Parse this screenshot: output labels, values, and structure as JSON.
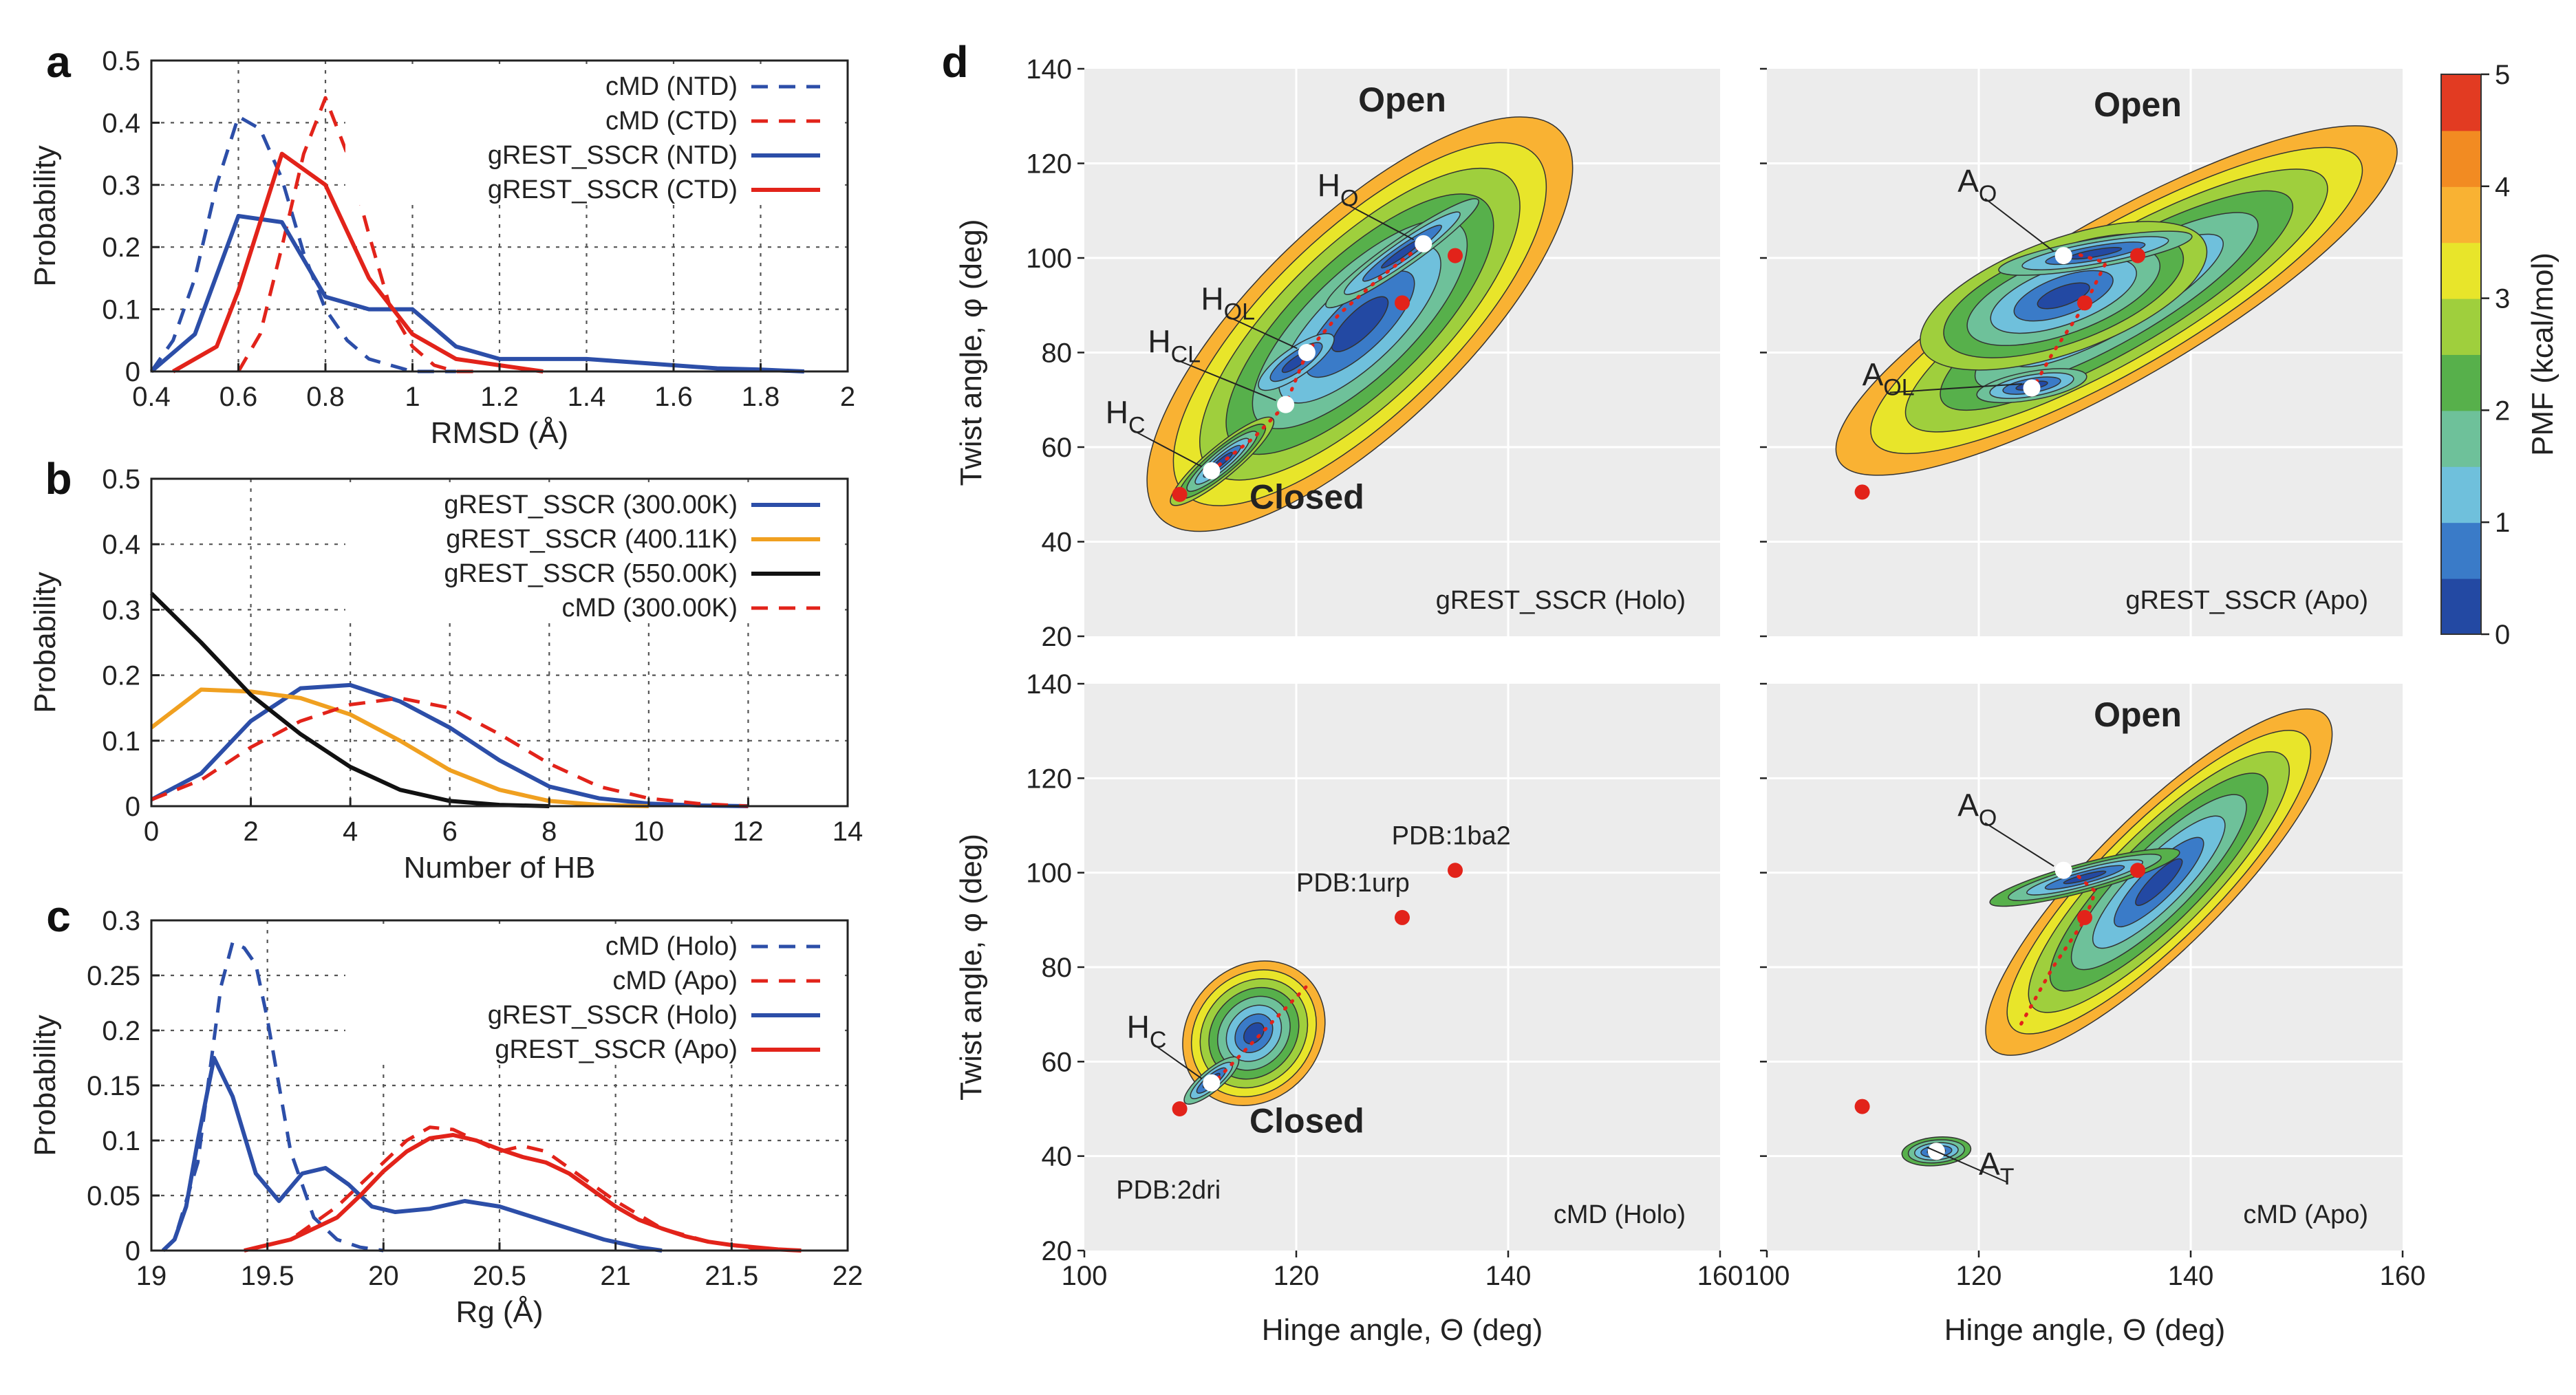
{
  "chart_data": [
    {
      "panel": "a",
      "type": "line",
      "xlabel": "RMSD (Å)",
      "ylabel": "Probability",
      "xlim": [
        0.4,
        2
      ],
      "ylim": [
        0,
        0.5
      ],
      "xticks": [
        "0.4",
        "0.6",
        "0.8",
        "1",
        "1.2",
        "1.4",
        "1.6",
        "1.8",
        "2"
      ],
      "yticks": [
        "0",
        "0.1",
        "0.2",
        "0.3",
        "0.4",
        "0.5"
      ],
      "legend_position": "top-right",
      "series": [
        {
          "name": "cMD (NTD)",
          "color": "#2c4ea8",
          "dash": true,
          "x": [
            0.4,
            0.45,
            0.5,
            0.55,
            0.6,
            0.65,
            0.7,
            0.75,
            0.8,
            0.85,
            0.9,
            0.95,
            1.0,
            1.05,
            1.1
          ],
          "y": [
            0,
            0.05,
            0.15,
            0.3,
            0.41,
            0.39,
            0.31,
            0.19,
            0.1,
            0.05,
            0.02,
            0.01,
            0,
            0,
            0
          ]
        },
        {
          "name": "cMD (CTD)",
          "color": "#e2231a",
          "dash": true,
          "x": [
            0.6,
            0.65,
            0.7,
            0.75,
            0.8,
            0.85,
            0.9,
            0.95,
            1.0,
            1.05,
            1.1,
            1.15
          ],
          "y": [
            0,
            0.06,
            0.2,
            0.35,
            0.44,
            0.35,
            0.22,
            0.1,
            0.04,
            0.01,
            0,
            0
          ]
        },
        {
          "name": "gREST_SSCR (NTD)",
          "color": "#2c4ea8",
          "dash": false,
          "x": [
            0.4,
            0.5,
            0.6,
            0.7,
            0.8,
            0.9,
            1.0,
            1.1,
            1.2,
            1.3,
            1.4,
            1.5,
            1.6,
            1.7,
            1.8,
            1.9
          ],
          "y": [
            0,
            0.06,
            0.25,
            0.24,
            0.12,
            0.1,
            0.1,
            0.04,
            0.02,
            0.02,
            0.02,
            0.015,
            0.01,
            0.005,
            0.003,
            0
          ]
        },
        {
          "name": "gREST_SSCR (CTD)",
          "color": "#e2231a",
          "dash": false,
          "x": [
            0.45,
            0.5,
            0.55,
            0.6,
            0.7,
            0.8,
            0.9,
            1.0,
            1.1,
            1.2,
            1.3
          ],
          "y": [
            0,
            0.02,
            0.04,
            0.13,
            0.35,
            0.3,
            0.15,
            0.06,
            0.02,
            0.01,
            0
          ]
        }
      ]
    },
    {
      "panel": "b",
      "type": "line",
      "xlabel": "Number of HB",
      "ylabel": "Probability",
      "xlim": [
        0,
        14
      ],
      "ylim": [
        0,
        0.5
      ],
      "xticks": [
        "0",
        "2",
        "4",
        "6",
        "8",
        "10",
        "12",
        "14"
      ],
      "yticks": [
        "0",
        "0.1",
        "0.2",
        "0.3",
        "0.4",
        "0.5"
      ],
      "legend_position": "top-right",
      "series": [
        {
          "name": "gREST_SSCR (300.00K)",
          "color": "#2c4ea8",
          "dash": false,
          "x": [
            0,
            1,
            2,
            3,
            4,
            5,
            6,
            7,
            8,
            9,
            10,
            11,
            12
          ],
          "y": [
            0.01,
            0.05,
            0.13,
            0.18,
            0.185,
            0.16,
            0.12,
            0.07,
            0.03,
            0.012,
            0.004,
            0.001,
            0
          ]
        },
        {
          "name": "gREST_SSCR (400.11K)",
          "color": "#f0a020",
          "dash": false,
          "x": [
            0,
            1,
            2,
            3,
            4,
            5,
            6,
            7,
            8,
            9,
            10
          ],
          "y": [
            0.12,
            0.178,
            0.175,
            0.165,
            0.14,
            0.1,
            0.055,
            0.025,
            0.008,
            0.002,
            0
          ]
        },
        {
          "name": "gREST_SSCR (550.00K)",
          "color": "#111111",
          "dash": false,
          "x": [
            0,
            1,
            2,
            3,
            4,
            5,
            6,
            7,
            8
          ],
          "y": [
            0.325,
            0.25,
            0.17,
            0.11,
            0.06,
            0.025,
            0.008,
            0.002,
            0
          ]
        },
        {
          "name": "cMD (300.00K)",
          "color": "#e2231a",
          "dash": true,
          "x": [
            0,
            1,
            2,
            3,
            4,
            5,
            6,
            7,
            8,
            9,
            10,
            11,
            12
          ],
          "y": [
            0.01,
            0.04,
            0.09,
            0.13,
            0.155,
            0.165,
            0.15,
            0.11,
            0.065,
            0.03,
            0.012,
            0.004,
            0
          ]
        }
      ]
    },
    {
      "panel": "c",
      "type": "line",
      "xlabel": "Rg (Å)",
      "ylabel": "Probability",
      "xlim": [
        19,
        22
      ],
      "ylim": [
        0,
        0.3
      ],
      "xticks": [
        "19",
        "19.5",
        "20",
        "20.5",
        "21",
        "21.5",
        "22"
      ],
      "yticks": [
        "0",
        "0.05",
        "0.1",
        "0.15",
        "0.2",
        "0.25",
        "0.3"
      ],
      "legend_position": "top-right",
      "series": [
        {
          "name": "cMD (Holo)",
          "color": "#2c4ea8",
          "dash": true,
          "x": [
            19.05,
            19.1,
            19.2,
            19.3,
            19.35,
            19.4,
            19.45,
            19.5,
            19.6,
            19.7,
            19.8,
            19.9,
            20.0
          ],
          "y": [
            0,
            0.01,
            0.08,
            0.24,
            0.28,
            0.275,
            0.26,
            0.21,
            0.09,
            0.03,
            0.01,
            0.003,
            0
          ]
        },
        {
          "name": "cMD (Apo)",
          "color": "#e2231a",
          "dash": true,
          "x": [
            19.4,
            19.6,
            19.8,
            20.0,
            20.1,
            20.2,
            20.3,
            20.4,
            20.5,
            20.6,
            20.7,
            20.8,
            20.9,
            21.0,
            21.2,
            21.4,
            21.6,
            21.8
          ],
          "y": [
            0,
            0.01,
            0.04,
            0.08,
            0.1,
            0.112,
            0.11,
            0.1,
            0.09,
            0.095,
            0.09,
            0.075,
            0.06,
            0.045,
            0.02,
            0.008,
            0.002,
            0
          ]
        },
        {
          "name": "gREST_SSCR (Holo)",
          "color": "#2c4ea8",
          "dash": false,
          "x": [
            19.05,
            19.1,
            19.15,
            19.2,
            19.27,
            19.35,
            19.45,
            19.55,
            19.65,
            19.75,
            19.85,
            19.95,
            20.05,
            20.2,
            20.35,
            20.5,
            20.65,
            20.8,
            20.95,
            21.1,
            21.2
          ],
          "y": [
            0,
            0.01,
            0.04,
            0.1,
            0.175,
            0.14,
            0.07,
            0.045,
            0.07,
            0.075,
            0.06,
            0.04,
            0.035,
            0.038,
            0.045,
            0.04,
            0.03,
            0.02,
            0.01,
            0.003,
            0
          ]
        },
        {
          "name": "gREST_SSCR (Apo)",
          "color": "#e2231a",
          "dash": false,
          "x": [
            19.4,
            19.6,
            19.8,
            19.9,
            20.0,
            20.1,
            20.2,
            20.3,
            20.4,
            20.5,
            20.6,
            20.7,
            20.8,
            20.9,
            21.0,
            21.1,
            21.2,
            21.3,
            21.4,
            21.5,
            21.6,
            21.7,
            21.8
          ],
          "y": [
            0,
            0.01,
            0.03,
            0.05,
            0.072,
            0.09,
            0.102,
            0.105,
            0.1,
            0.092,
            0.085,
            0.08,
            0.07,
            0.055,
            0.04,
            0.028,
            0.02,
            0.013,
            0.008,
            0.005,
            0.003,
            0.001,
            0
          ]
        }
      ]
    },
    {
      "panel": "d",
      "type": "heatmap",
      "xlabel": "Hinge angle, Θ (deg)",
      "ylabel": "Twist angle, φ (deg)",
      "xlim": [
        100,
        160
      ],
      "ylim": [
        20,
        140
      ],
      "xticks": [
        "100",
        "120",
        "140",
        "160"
      ],
      "yticks": [
        "20",
        "40",
        "60",
        "80",
        "100",
        "120",
        "140"
      ],
      "colorbar": {
        "label": "PMF (kcal/mol)",
        "range": [
          0,
          5
        ],
        "ticks": [
          "0",
          "1",
          "2",
          "3",
          "4",
          "5"
        ],
        "colors": [
          "#2349a3",
          "#3a7bc8",
          "#6fc0dc",
          "#6ec19a",
          "#57b04b",
          "#9fcf3d",
          "#e8e52a",
          "#f9b233",
          "#f28b22",
          "#e23b22"
        ]
      },
      "subplots": [
        {
          "id": "holo-gREST",
          "name": "gREST_SSCR (Holo)",
          "region_labels": [
            {
              "text": "Open",
              "x": 130,
              "y": 131
            },
            {
              "text": "Closed",
              "x": 121,
              "y": 47
            }
          ],
          "states": [
            {
              "sym": "H",
              "sub": "O",
              "x": 132,
              "y": 103,
              "lx": 122,
              "ly": 113
            },
            {
              "sym": "H",
              "sub": "OL",
              "x": 121,
              "y": 80,
              "lx": 111,
              "ly": 89
            },
            {
              "sym": "H",
              "sub": "CL",
              "x": 119,
              "y": 69,
              "lx": 106,
              "ly": 80
            },
            {
              "sym": "H",
              "sub": "C",
              "x": 112,
              "y": 55,
              "lx": 102,
              "ly": 65
            }
          ],
          "pdb": [
            {
              "x": 109,
              "y": 50
            },
            {
              "x": 130,
              "y": 90.5
            },
            {
              "x": 135,
              "y": 100.5
            }
          ],
          "path": [
            [
              112,
              55
            ],
            [
              116,
              62
            ],
            [
              119,
              69
            ],
            [
              121,
              80
            ],
            [
              124,
              88
            ],
            [
              128,
              96
            ],
            [
              132,
              103
            ]
          ],
          "basins": [
            {
              "cx": 126,
              "cy": 86,
              "rx": 26,
              "ry": 44,
              "rot": -44,
              "n": 8
            },
            {
              "cx": 113,
              "cy": 57,
              "rx": 6,
              "ry": 6.5,
              "rot": -40,
              "n": 6
            },
            {
              "cx": 130,
              "cy": 101,
              "rx": 8.5,
              "ry": 6,
              "rot": -35,
              "n": 4
            },
            {
              "cx": 120,
              "cy": 78,
              "rx": 4,
              "ry": 6,
              "rot": -35,
              "n": 3
            }
          ]
        },
        {
          "id": "apo-gREST",
          "name": "gREST_SSCR (Apo)",
          "region_labels": [
            {
              "text": "Open",
              "x": 135,
              "y": 130
            }
          ],
          "states": [
            {
              "sym": "A",
              "sub": "O",
              "x": 128,
              "y": 100.5,
              "lx": 118,
              "ly": 114
            },
            {
              "sym": "A",
              "sub": "OL",
              "x": 125,
              "y": 72.5,
              "lx": 109,
              "ly": 73
            }
          ],
          "pdb": [
            {
              "x": 109,
              "y": 50.5
            },
            {
              "x": 130,
              "y": 90.5
            },
            {
              "x": 135,
              "y": 100.5
            }
          ],
          "path": [
            [
              125,
              72
            ],
            [
              127,
              80
            ],
            [
              130,
              90
            ],
            [
              132,
              99
            ],
            [
              129,
              101
            ]
          ],
          "basins": [
            {
              "cx": 133,
              "cy": 91,
              "rx": 30,
              "ry": 34,
              "rot": -30,
              "n": 8
            },
            {
              "cx": 128,
              "cy": 92,
              "rx": 14,
              "ry": 24,
              "rot": -20,
              "n": 6
            },
            {
              "cx": 131,
              "cy": 101,
              "rx": 9,
              "ry": 6,
              "rot": -10,
              "n": 4
            },
            {
              "cx": 125,
              "cy": 73,
              "rx": 5,
              "ry": 6,
              "rot": -10,
              "n": 4
            }
          ]
        },
        {
          "id": "holo-cMD",
          "name": "cMD (Holo)",
          "region_labels": [
            {
              "text": "Closed",
              "x": 121,
              "y": 45
            }
          ],
          "states": [
            {
              "sym": "H",
              "sub": "C",
              "x": 112,
              "y": 55.5,
              "lx": 104,
              "ly": 65
            }
          ],
          "pdb": [
            {
              "x": 109,
              "y": 50
            },
            {
              "x": 130,
              "y": 90.5
            },
            {
              "x": 135,
              "y": 100.5
            }
          ],
          "pdb_labels": [
            {
              "text": "PDB:2dri",
              "x": 109,
              "y": 50,
              "lx": 103,
              "ly": 31
            },
            {
              "text": "PDB:1urp",
              "x": 130,
              "y": 90.5,
              "lx": 120,
              "ly": 96
            },
            {
              "text": "PDB:1ba2",
              "x": 135,
              "y": 100.5,
              "lx": 129,
              "ly": 106
            }
          ],
          "path": [
            [
              112,
              55
            ],
            [
              115,
              62
            ],
            [
              118,
              69
            ],
            [
              121,
              76
            ]
          ],
          "basins": [
            {
              "cx": 116,
              "cy": 66,
              "rx": 7,
              "ry": 28,
              "rot": -48,
              "n": 8
            },
            {
              "cx": 112,
              "cy": 56,
              "rx": 3,
              "ry": 4.5,
              "rot": -40,
              "n": 4
            }
          ]
        },
        {
          "id": "apo-cMD",
          "name": "cMD (Apo)",
          "region_labels": [
            {
              "text": "Open",
              "x": 135,
              "y": 131
            }
          ],
          "states": [
            {
              "sym": "A",
              "sub": "O",
              "x": 128,
              "y": 100.5,
              "lx": 118,
              "ly": 112
            },
            {
              "sym": "A",
              "sub": "T",
              "x": 116,
              "y": 41,
              "lx": 120,
              "ly": 36
            }
          ],
          "pdb": [
            {
              "x": 109,
              "y": 50.5
            },
            {
              "x": 130,
              "y": 90.5
            },
            {
              "x": 135,
              "y": 100.5
            }
          ],
          "path": [
            [
              124,
              68
            ],
            [
              127,
              80
            ],
            [
              130,
              90
            ],
            [
              131,
              96
            ],
            [
              129,
              100
            ]
          ],
          "basins": [
            {
              "cx": 137,
              "cy": 98,
              "rx": 22,
              "ry": 28,
              "rot": -45,
              "n": 8
            },
            {
              "cx": 130,
              "cy": 99,
              "rx": 9,
              "ry": 6,
              "rot": -15,
              "n": 5
            },
            {
              "cx": 116,
              "cy": 41,
              "rx": 3,
              "ry": 6,
              "rot": -5,
              "n": 5
            }
          ]
        }
      ]
    }
  ]
}
